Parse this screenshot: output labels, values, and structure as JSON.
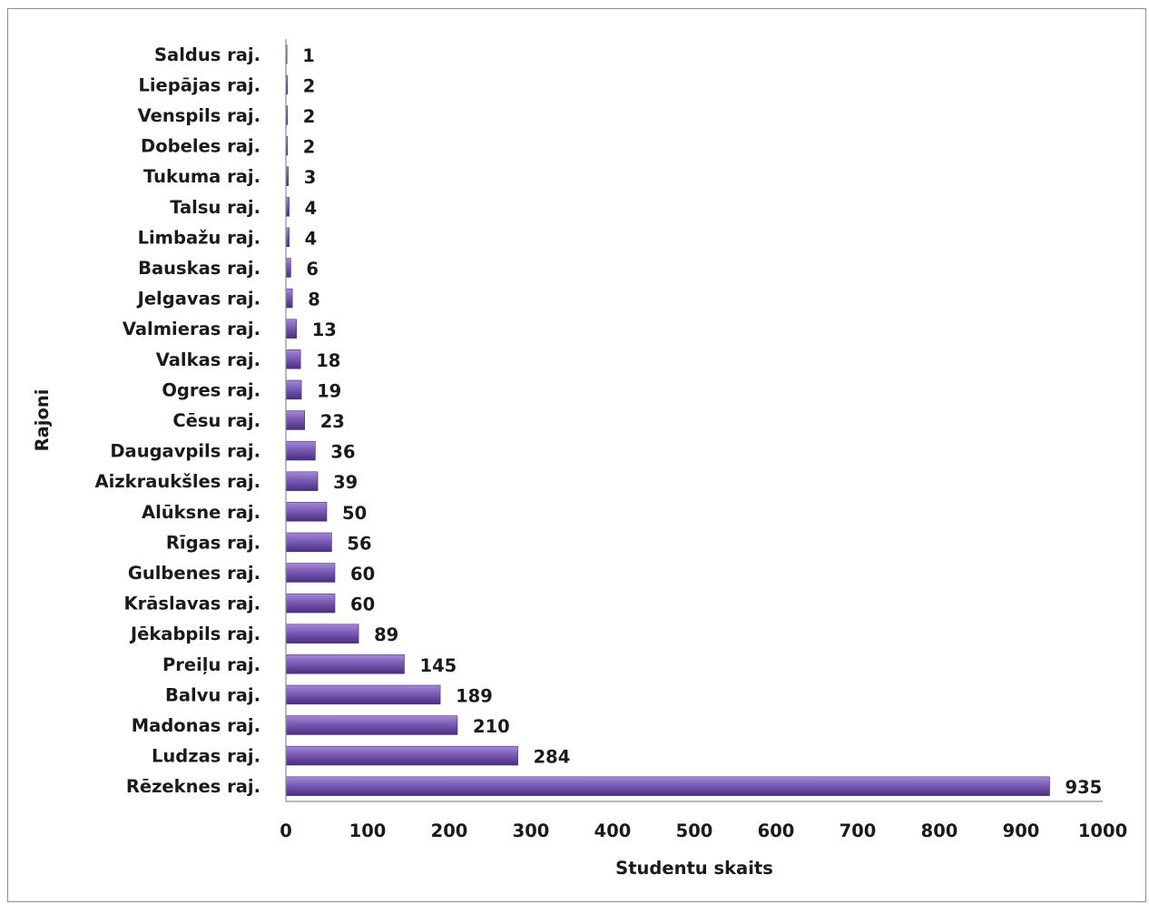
{
  "chart_data": {
    "type": "bar",
    "orientation": "horizontal",
    "categories": [
      "Saldus raj.",
      "Liepājas raj.",
      "Venspils raj.",
      "Dobeles raj.",
      "Tukuma raj.",
      "Talsu raj.",
      "Limbažu raj.",
      "Bauskas raj.",
      "Jelgavas raj.",
      "Valmieras raj.",
      "Valkas raj.",
      "Ogres raj.",
      "Cēsu raj.",
      "Daugavpils raj.",
      "Aizkraukšles raj.",
      "Alūksne raj.",
      "Rīgas raj.",
      "Gulbenes raj.",
      "Krāslavas raj.",
      "Jēkabpils raj.",
      "Preiļu raj.",
      "Balvu raj.",
      "Madonas raj.",
      "Ludzas raj.",
      "Rēzeknes raj."
    ],
    "values": [
      1,
      2,
      2,
      2,
      3,
      4,
      4,
      6,
      8,
      13,
      18,
      19,
      23,
      36,
      39,
      50,
      56,
      60,
      60,
      89,
      145,
      189,
      210,
      284,
      935
    ],
    "data_labels": [
      "1",
      "2",
      "2",
      "2",
      "3",
      "4",
      "4",
      "6",
      "8",
      "13",
      "18",
      "19",
      "23",
      "36",
      "39",
      "50",
      "56",
      "60",
      "60",
      "89",
      "145",
      "189",
      "210",
      "284",
      "935"
    ],
    "xlabel": "Studentu skaits",
    "ylabel": "Rajoni",
    "xlim": [
      0,
      1000
    ],
    "xticks": [
      "0",
      "100",
      "200",
      "300",
      "400",
      "500",
      "600",
      "700",
      "800",
      "900",
      "1000"
    ],
    "grid": false,
    "legend": "none",
    "bar_color": "#7a5bb5",
    "bar_color_light": "#a58ad6",
    "bar_color_dark": "#4a2f80"
  }
}
